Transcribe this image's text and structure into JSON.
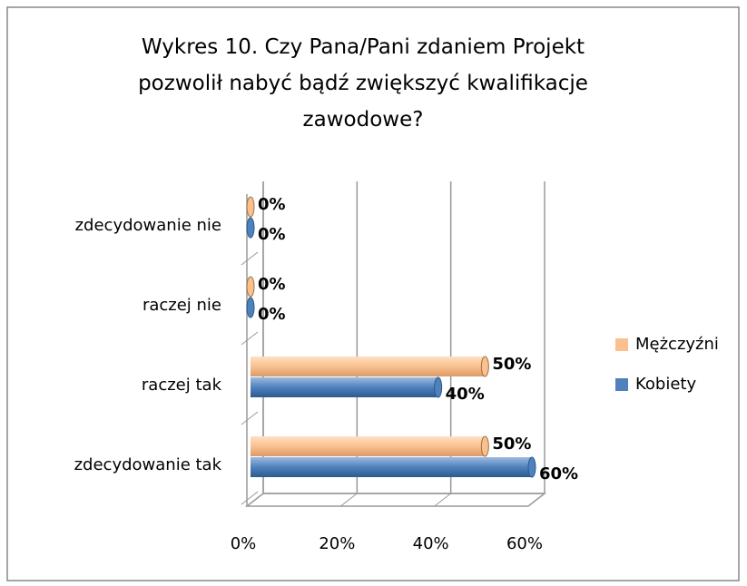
{
  "chart_data": {
    "type": "bar",
    "orientation": "horizontal",
    "title": "Wykres 10. Czy Pana/Pani zdaniem Projekt pozwolił nabyć bądź zwiększyć kwalifikacje zawodowe?",
    "categories": [
      "zdecydowanie tak",
      "raczej tak",
      "raczej nie",
      "zdecydowanie nie"
    ],
    "series": [
      {
        "name": "Kobiety",
        "color": "#4f81bd",
        "values": [
          60,
          40,
          0,
          0
        ],
        "value_labels": [
          "60%",
          "40%",
          "0%",
          "0%"
        ]
      },
      {
        "name": "Mężczyźni",
        "color": "#fac08f",
        "values": [
          50,
          50,
          0,
          0
        ],
        "value_labels": [
          "50%",
          "50%",
          "0%",
          "0%"
        ]
      }
    ],
    "xlim": [
      0,
      60
    ],
    "xticks": [
      {
        "value": 0,
        "label": "0%"
      },
      {
        "value": 20,
        "label": "20%"
      },
      {
        "value": 40,
        "label": "40%"
      },
      {
        "value": 60,
        "label": "60%"
      }
    ],
    "grid": true,
    "legend": "right"
  }
}
